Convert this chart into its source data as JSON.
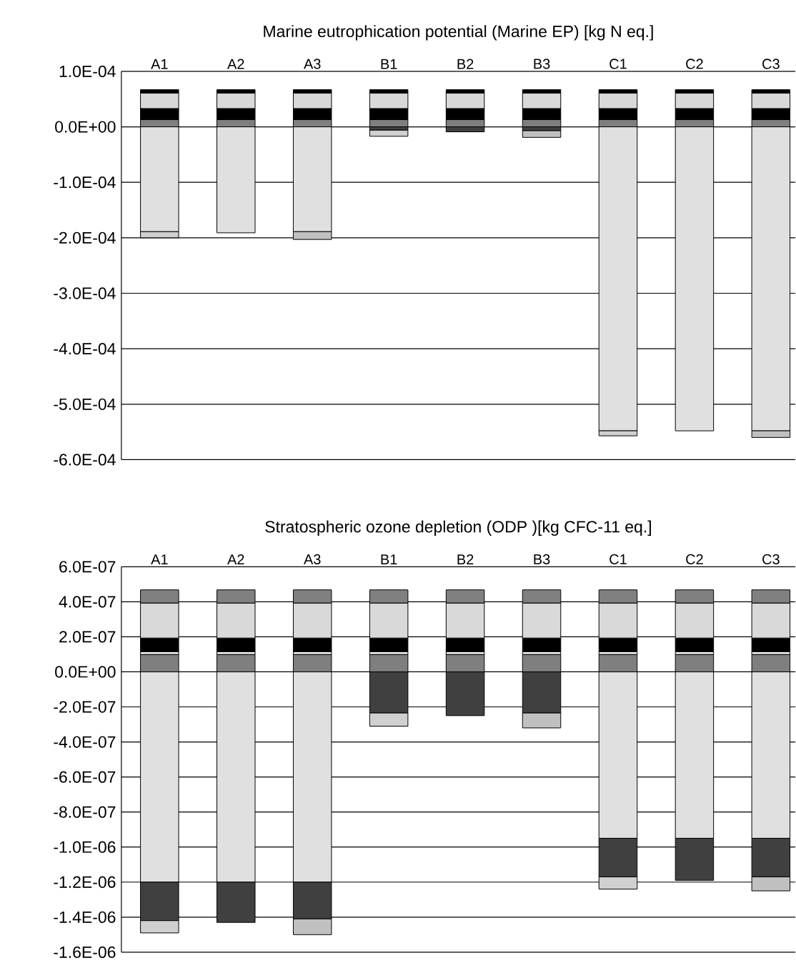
{
  "chart_data": [
    {
      "type": "bar",
      "title": "Marine eutrophication potential (Marine EP) [kg N eq.]",
      "categories": [
        "A1",
        "A2",
        "A3",
        "B1",
        "B2",
        "B3",
        "C1",
        "C2",
        "C3"
      ],
      "stacked": true,
      "grid": "y",
      "ylim": [
        -0.0006,
        0.0001
      ],
      "yticks": [
        {
          "value": 0.0001,
          "label": "1.0E-04"
        },
        {
          "value": 0,
          "label": "0.0E+00"
        },
        {
          "value": -0.0001,
          "label": "-1.0E-04"
        },
        {
          "value": -0.0002,
          "label": "-2.0E-04"
        },
        {
          "value": -0.0003,
          "label": "-3.0E-04"
        },
        {
          "value": -0.0004,
          "label": "-4.0E-04"
        },
        {
          "value": -0.0005,
          "label": "-5.0E-04"
        },
        {
          "value": -0.0006,
          "label": "-6.0E-04"
        }
      ],
      "series": [
        {
          "color": "#7f7f7f",
          "values": [
            1.3e-05,
            1.3e-05,
            1.3e-05,
            1.3e-05,
            1.3e-05,
            1.3e-05,
            1.3e-05,
            1.3e-05,
            1.3e-05
          ]
        },
        {
          "color": "#000000",
          "values": [
            2e-05,
            2e-05,
            2e-05,
            2e-05,
            2e-05,
            2e-05,
            2e-05,
            2e-05,
            2e-05
          ]
        },
        {
          "color": "#d9d9d9",
          "values": [
            2.8e-05,
            2.8e-05,
            2.8e-05,
            2.8e-05,
            2.8e-05,
            2.8e-05,
            2.8e-05,
            2.8e-05,
            2.8e-05
          ]
        },
        {
          "color": "#000000",
          "values": [
            6e-06,
            6e-06,
            6e-06,
            6e-06,
            6e-06,
            6e-06,
            6e-06,
            6e-06,
            6e-06
          ]
        },
        {
          "color": "#e0e0e0",
          "values": [
            -0.000189,
            -0.000191,
            -0.000189,
            null,
            null,
            null,
            -0.000548,
            -0.000548,
            -0.000548
          ]
        },
        {
          "color": "#404040",
          "values": [
            null,
            null,
            null,
            -6e-06,
            -9e-06,
            -7e-06,
            null,
            null,
            null
          ]
        },
        {
          "color": "#d0d0d0",
          "values": [
            -1.1e-05,
            null,
            null,
            -1.1e-05,
            null,
            null,
            -9e-06,
            null,
            null
          ]
        },
        {
          "color": "#c0c0c0",
          "values": [
            null,
            null,
            -1.4e-05,
            null,
            null,
            -1.2e-05,
            null,
            null,
            -1.2e-05
          ]
        }
      ]
    },
    {
      "type": "bar",
      "title": "Stratospheric ozone depletion (ODP )[kg CFC-11 eq.]",
      "categories": [
        "A1",
        "A2",
        "A3",
        "B1",
        "B2",
        "B3",
        "C1",
        "C2",
        "C3"
      ],
      "stacked": true,
      "grid": "y",
      "ylim": [
        -1.6e-06,
        6e-07
      ],
      "yticks": [
        {
          "value": 6e-07,
          "label": "6.0E-07"
        },
        {
          "value": 4e-07,
          "label": "4.0E-07"
        },
        {
          "value": 2e-07,
          "label": "2.0E-07"
        },
        {
          "value": 0,
          "label": "0.0E+00"
        },
        {
          "value": -2e-07,
          "label": "-2.0E-07"
        },
        {
          "value": -4e-07,
          "label": "-4.0E-07"
        },
        {
          "value": -6e-07,
          "label": "-6.0E-07"
        },
        {
          "value": -8e-07,
          "label": "-8.0E-07"
        },
        {
          "value": -1e-06,
          "label": "-1.0E-06"
        },
        {
          "value": -1.2e-06,
          "label": "-1.2E-06"
        },
        {
          "value": -1.4e-06,
          "label": "-1.4E-06"
        },
        {
          "value": -1.6e-06,
          "label": "-1.6E-06"
        }
      ],
      "series": [
        {
          "color": "#7f7f7f",
          "values": [
            1e-07,
            1e-07,
            1e-07,
            1e-07,
            1e-07,
            1e-07,
            1e-07,
            1e-07,
            1e-07
          ]
        },
        {
          "color": "#ffffff",
          "values": [
            1.5e-08,
            1.5e-08,
            1.5e-08,
            1.5e-08,
            1.5e-08,
            1.5e-08,
            1.5e-08,
            1.5e-08,
            1.5e-08
          ]
        },
        {
          "color": "#000000",
          "values": [
            7.8e-08,
            7.8e-08,
            7.8e-08,
            7.8e-08,
            7.8e-08,
            7.8e-08,
            7.8e-08,
            7.8e-08,
            7.8e-08
          ]
        },
        {
          "color": "#d9d9d9",
          "values": [
            2e-07,
            2e-07,
            2e-07,
            2e-07,
            2e-07,
            2e-07,
            2e-07,
            2e-07,
            2e-07
          ]
        },
        {
          "color": "#808080",
          "values": [
            7.5e-08,
            7.5e-08,
            7.5e-08,
            7.5e-08,
            7.5e-08,
            7.5e-08,
            7.5e-08,
            7.5e-08,
            7.5e-08
          ]
        },
        {
          "color": "#e0e0e0",
          "values": [
            -1.2e-06,
            -1.2e-06,
            -1.2e-06,
            null,
            null,
            null,
            -9.5e-07,
            -9.5e-07,
            -9.5e-07
          ]
        },
        {
          "color": "#404040",
          "values": [
            -2.2e-07,
            -2.3e-07,
            -2.1e-07,
            -2.35e-07,
            -2.5e-07,
            -2.35e-07,
            -2.2e-07,
            -2.4e-07,
            -2.2e-07
          ]
        },
        {
          "color": "#d0d0d0",
          "values": [
            -7e-08,
            null,
            null,
            -7.5e-08,
            null,
            null,
            -7e-08,
            null,
            null
          ]
        },
        {
          "color": "#c0c0c0",
          "values": [
            null,
            null,
            -9e-08,
            null,
            null,
            -8.5e-08,
            null,
            null,
            -8e-08
          ]
        }
      ]
    }
  ]
}
